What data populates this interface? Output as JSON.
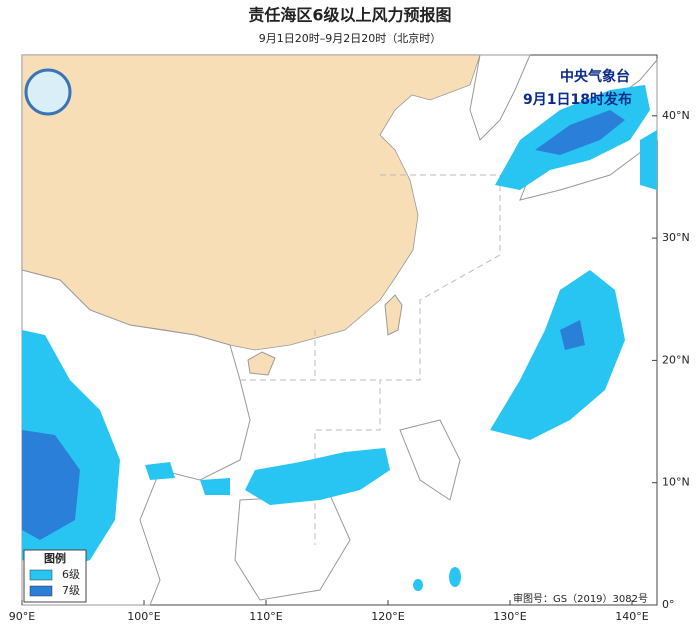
{
  "map": {
    "title": "责任海区6级以上风力预报图",
    "subtitle": "9月1日20时–9月2日20时（北京时）",
    "issuer": "中央气象台",
    "issue_time": "9月1日18时发布",
    "legend": {
      "title": "图例",
      "items": [
        "6级",
        "7级"
      ]
    },
    "approval": "审图号：GS（2019）3082号",
    "x_labels": [
      "90°E",
      "100°E",
      "110°E",
      "120°E",
      "130°E",
      "140°E"
    ],
    "y_labels": [
      "0°",
      "10°N",
      "20°N",
      "30°N",
      "40°N"
    ]
  }
}
